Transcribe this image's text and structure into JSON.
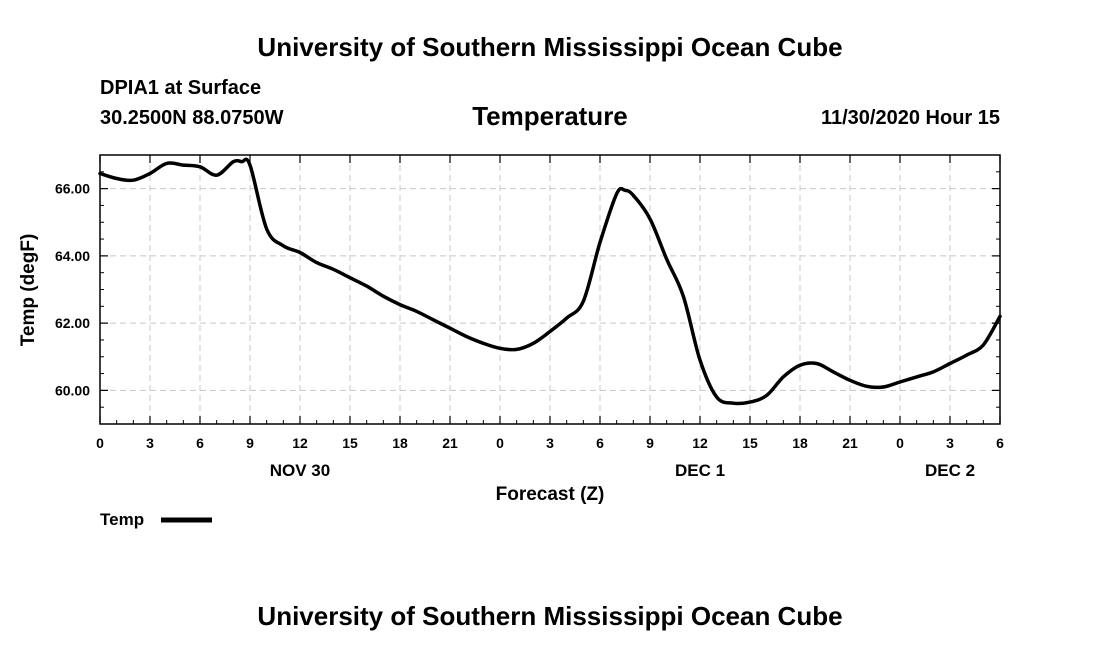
{
  "header": {
    "title": "University of Southern Mississippi Ocean Cube",
    "station": "DPIA1 at Surface",
    "coords": "30.2500N 88.0750W",
    "datetime": "11/30/2020 Hour 15"
  },
  "footer": {
    "title": "University of Southern Mississippi Ocean Cube"
  },
  "chart_data": {
    "type": "line",
    "title": "Temperature",
    "xlabel": "Forecast (Z)",
    "ylabel": "Temp (degF)",
    "xlim": [
      0,
      54
    ],
    "ylim": [
      59.0,
      67.0
    ],
    "grid": true,
    "x_ticks": [
      0,
      3,
      6,
      9,
      12,
      15,
      18,
      21,
      24,
      27,
      30,
      33,
      36,
      39,
      42,
      45,
      48,
      51,
      54
    ],
    "x_tick_labels": [
      "0",
      "3",
      "6",
      "9",
      "12",
      "15",
      "18",
      "21",
      "0",
      "3",
      "6",
      "9",
      "12",
      "15",
      "18",
      "21",
      "0",
      "3",
      "6"
    ],
    "date_labels": [
      {
        "x": 12,
        "label": "NOV 30"
      },
      {
        "x": 36,
        "label": "DEC 1"
      },
      {
        "x": 51,
        "label": "DEC 2"
      }
    ],
    "y_ticks": [
      60,
      62,
      64,
      66
    ],
    "y_tick_labels": [
      "60.00",
      "62.00",
      "64.00",
      "66.00"
    ],
    "legend": {
      "position": "bottom-left",
      "label": "Temp"
    },
    "series": [
      {
        "name": "Temp",
        "x": [
          0,
          1,
          2,
          3,
          4,
          5,
          6,
          7,
          8,
          8.5,
          9,
          10,
          11,
          12,
          13,
          14,
          15,
          16,
          17,
          18,
          19,
          20,
          21,
          22,
          23,
          24,
          25,
          26,
          27,
          28,
          29,
          30,
          31,
          31.5,
          32,
          33,
          34,
          35,
          36,
          37,
          38,
          39,
          40,
          41,
          42,
          43,
          44,
          45,
          46,
          47,
          48,
          49,
          50,
          51,
          52,
          53,
          54
        ],
        "y": [
          66.45,
          66.3,
          66.25,
          66.45,
          66.75,
          66.7,
          66.65,
          66.4,
          66.8,
          66.8,
          66.7,
          64.8,
          64.3,
          64.1,
          63.8,
          63.6,
          63.35,
          63.1,
          62.8,
          62.55,
          62.35,
          62.1,
          61.85,
          61.6,
          61.4,
          61.25,
          61.22,
          61.4,
          61.75,
          62.15,
          62.65,
          64.4,
          65.85,
          65.95,
          65.8,
          65.1,
          63.9,
          62.8,
          60.9,
          59.8,
          59.62,
          59.65,
          59.85,
          60.4,
          60.75,
          60.8,
          60.55,
          60.3,
          60.12,
          60.1,
          60.25,
          60.4,
          60.55,
          60.8,
          61.05,
          61.35,
          62.2
        ]
      }
    ]
  }
}
